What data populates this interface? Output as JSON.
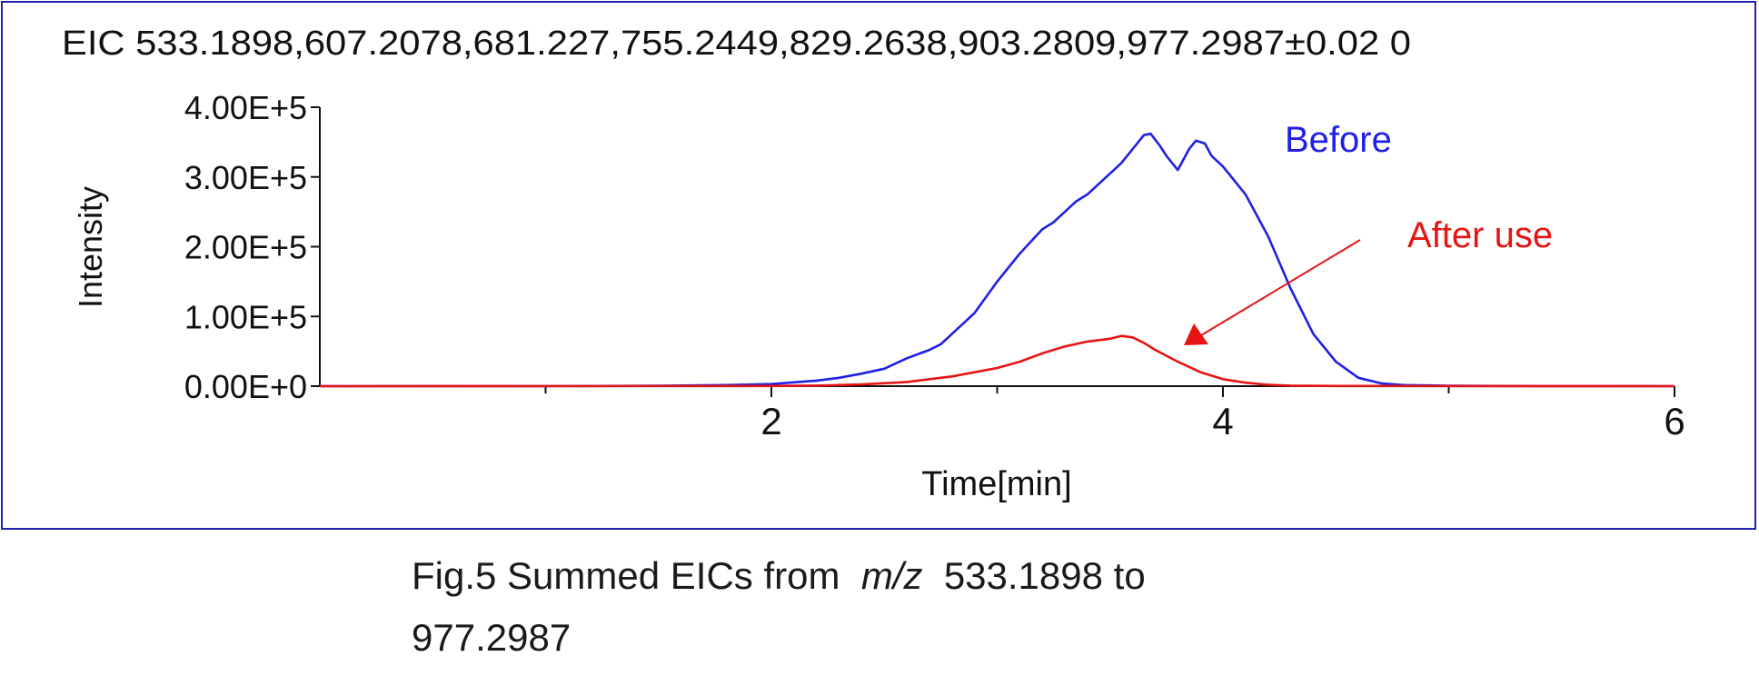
{
  "chart_data": {
    "type": "line",
    "title": "EIC 533.1898,607.2078,681.227,755.2449,829.2638,903.2809,977.2987±0.02 0",
    "xlabel": "Time[min]",
    "ylabel": "Intensity",
    "xlim": [
      0,
      6
    ],
    "ylim": [
      0,
      400000
    ],
    "x_ticks": [
      2,
      4,
      6
    ],
    "x_minor_ticks": [
      1,
      2,
      3,
      4,
      5,
      6
    ],
    "y_ticks": [
      0,
      100000,
      200000,
      300000,
      400000
    ],
    "y_tick_labels": [
      "0.00E+0",
      "1.00E+5",
      "2.00E+5",
      "3.00E+5",
      "4.00E+5"
    ],
    "grid": false,
    "frame_color": "#1f1fb0",
    "series": [
      {
        "name": "Before",
        "color": "#1f1fe6",
        "x": [
          0,
          1.0,
          1.5,
          1.8,
          2.0,
          2.2,
          2.3,
          2.4,
          2.5,
          2.6,
          2.7,
          2.75,
          2.8,
          2.9,
          3.0,
          3.1,
          3.2,
          3.25,
          3.3,
          3.35,
          3.4,
          3.45,
          3.5,
          3.55,
          3.6,
          3.65,
          3.68,
          3.72,
          3.75,
          3.8,
          3.85,
          3.88,
          3.92,
          3.95,
          4.0,
          4.1,
          4.2,
          4.3,
          4.4,
          4.5,
          4.6,
          4.7,
          4.8,
          5.0,
          5.5,
          6.0
        ],
        "values": [
          0,
          0,
          500,
          1500,
          3000,
          8000,
          12000,
          18000,
          25000,
          40000,
          52000,
          60000,
          75000,
          105000,
          150000,
          190000,
          225000,
          235000,
          250000,
          265000,
          275000,
          290000,
          305000,
          320000,
          340000,
          360000,
          362000,
          345000,
          330000,
          310000,
          340000,
          352000,
          348000,
          330000,
          315000,
          275000,
          215000,
          140000,
          75000,
          35000,
          12000,
          4000,
          1500,
          500,
          0,
          0
        ]
      },
      {
        "name": "After use",
        "color": "#e61414",
        "x": [
          0,
          2.0,
          2.2,
          2.4,
          2.6,
          2.8,
          3.0,
          3.1,
          3.2,
          3.3,
          3.4,
          3.5,
          3.55,
          3.6,
          3.65,
          3.7,
          3.8,
          3.9,
          4.0,
          4.1,
          4.2,
          4.3,
          4.5,
          6.0
        ],
        "values": [
          0,
          200,
          800,
          2500,
          6000,
          14000,
          26000,
          35000,
          47000,
          57000,
          64000,
          68000,
          72000,
          70000,
          62000,
          52000,
          35000,
          20000,
          10000,
          5000,
          2000,
          800,
          200,
          0
        ]
      }
    ],
    "annotations": [
      {
        "text": "Before",
        "color": "#1f1fe6"
      },
      {
        "text": "After use",
        "color": "#e61414",
        "arrow": true
      }
    ]
  },
  "caption": {
    "line1_prefix": "Fig.5  Summed  EICs  from",
    "mz": "m/z",
    "line1_suffix": "533.1898  to",
    "line2": "977.2987"
  }
}
